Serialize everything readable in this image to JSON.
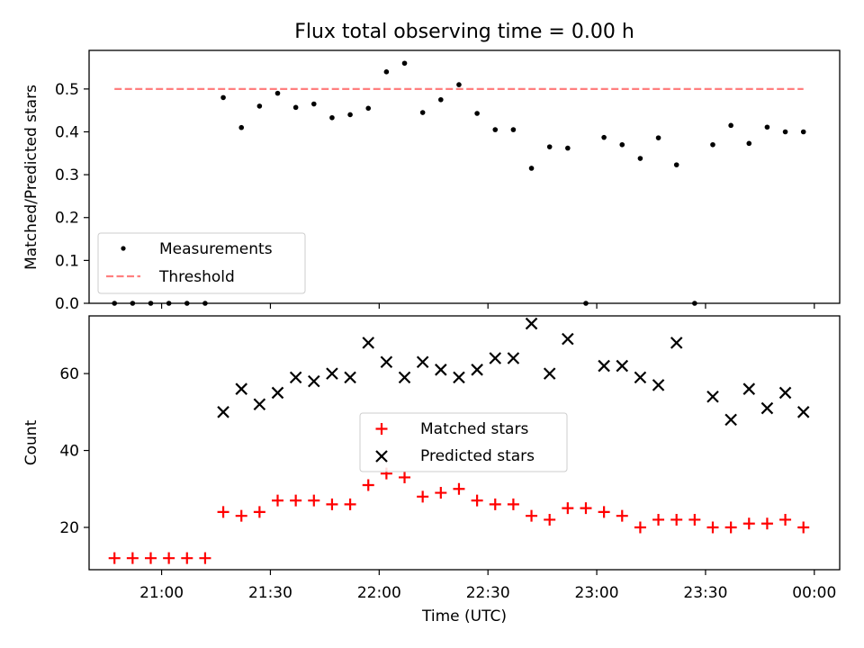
{
  "chart_data": [
    {
      "type": "scatter",
      "title": "Flux total observing time = 0.00 h",
      "ylabel": "Matched/Predicted stars",
      "xlabel": "",
      "ylim": [
        0,
        0.59
      ],
      "yticks": [
        0.0,
        0.1,
        0.2,
        0.3,
        0.4,
        0.5
      ],
      "ytick_labels": [
        "0.0",
        "0.1",
        "0.2",
        "0.3",
        "0.4",
        "0.5"
      ],
      "x_unit": "UTC time (HH:MM, after 24:00 = next day)",
      "xlim": [
        "20:40",
        "24:07"
      ],
      "legend_position": "lower-left",
      "series": [
        {
          "name": "Measurements",
          "marker": "dot",
          "color": "#000000",
          "x": [
            "20:47",
            "20:52",
            "20:57",
            "21:02",
            "21:07",
            "21:12",
            "21:17",
            "21:22",
            "21:27",
            "21:32",
            "21:37",
            "21:42",
            "21:47",
            "21:52",
            "21:57",
            "22:02",
            "22:07",
            "22:12",
            "22:17",
            "22:22",
            "22:27",
            "22:32",
            "22:37",
            "22:42",
            "22:47",
            "22:52",
            "22:57",
            "23:02",
            "23:07",
            "23:12",
            "23:17",
            "23:22",
            "23:27",
            "23:32",
            "23:37",
            "23:42",
            "23:47",
            "23:52",
            "23:57"
          ],
          "y": [
            0,
            0,
            0,
            0,
            0,
            0,
            0.48,
            0.41,
            0.46,
            0.49,
            0.457,
            0.465,
            0.433,
            0.44,
            0.455,
            0.54,
            0.56,
            0.445,
            0.475,
            0.51,
            0.443,
            0.405,
            0.405,
            0.315,
            0.365,
            0.362,
            0,
            0.387,
            0.37,
            0.338,
            0.386,
            0.323,
            0,
            0.37,
            0.415,
            0.373,
            0.411,
            0.4,
            0.4
          ]
        },
        {
          "name": "Threshold",
          "style": "dashed",
          "color": "#ff7f7f",
          "x": [
            "20:47",
            "23:57"
          ],
          "y": [
            0.5,
            0.5
          ]
        }
      ]
    },
    {
      "type": "scatter",
      "title": "",
      "ylabel": "Count",
      "xlabel": "Time (UTC)",
      "ylim": [
        9,
        75
      ],
      "yticks": [
        20,
        40,
        60
      ],
      "ytick_labels": [
        "20",
        "40",
        "60"
      ],
      "xticks": [
        "21:00",
        "21:30",
        "22:00",
        "22:30",
        "23:00",
        "23:30",
        "24:00"
      ],
      "xtick_labels": [
        "21:00",
        "21:30",
        "22:00",
        "22:30",
        "23:00",
        "23:30",
        "00:00"
      ],
      "xlim": [
        "20:40",
        "24:07"
      ],
      "legend_position": "center",
      "series": [
        {
          "name": "Matched stars",
          "marker": "plus",
          "color": "#ff0000",
          "x": [
            "20:47",
            "20:52",
            "20:57",
            "21:02",
            "21:07",
            "21:12",
            "21:17",
            "21:22",
            "21:27",
            "21:32",
            "21:37",
            "21:42",
            "21:47",
            "21:52",
            "21:57",
            "22:02",
            "22:07",
            "22:12",
            "22:17",
            "22:22",
            "22:27",
            "22:32",
            "22:37",
            "22:42",
            "22:47",
            "22:52",
            "22:57",
            "23:02",
            "23:07",
            "23:12",
            "23:17",
            "23:22",
            "23:27",
            "23:32",
            "23:37",
            "23:42",
            "23:47",
            "23:52",
            "23:57"
          ],
          "y": [
            12,
            12,
            12,
            12,
            12,
            12,
            24,
            23,
            24,
            27,
            27,
            27,
            26,
            26,
            31,
            34,
            33,
            28,
            29,
            30,
            27,
            26,
            26,
            23,
            22,
            25,
            25,
            24,
            23,
            20,
            22,
            22,
            22,
            20,
            20,
            21,
            21,
            22,
            20
          ]
        },
        {
          "name": "Predicted stars",
          "marker": "x",
          "color": "#000000",
          "x": [
            "21:17",
            "21:22",
            "21:27",
            "21:32",
            "21:37",
            "21:42",
            "21:47",
            "21:52",
            "21:57",
            "22:02",
            "22:07",
            "22:12",
            "22:17",
            "22:22",
            "22:27",
            "22:32",
            "22:37",
            "22:42",
            "22:47",
            "22:52",
            "23:02",
            "23:07",
            "23:12",
            "23:17",
            "23:22",
            "23:32",
            "23:37",
            "23:42",
            "23:47",
            "23:52",
            "23:57"
          ],
          "y": [
            50,
            56,
            52,
            55,
            59,
            58,
            60,
            59,
            68,
            63,
            59,
            63,
            61,
            59,
            61,
            64,
            64,
            73,
            60,
            69,
            62,
            62,
            59,
            57,
            68,
            54,
            48,
            56,
            51,
            55,
            50
          ]
        }
      ]
    }
  ]
}
